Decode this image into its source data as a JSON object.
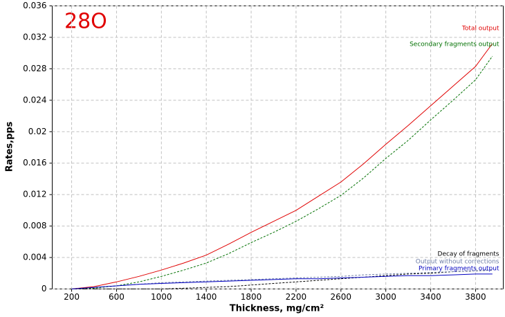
{
  "chart_data": {
    "type": "line",
    "annotation": "28O",
    "x_label": "Thickness, mg/cm²",
    "y_label": "Rates,pps",
    "x": [
      200,
      400,
      600,
      800,
      1000,
      1200,
      1400,
      1600,
      1800,
      2000,
      2200,
      2400,
      2600,
      2800,
      3000,
      3200,
      3400,
      3600,
      3800,
      3950
    ],
    "series": [
      {
        "name": "Total output",
        "color": "#e00000",
        "dashed": false,
        "values": [
          0,
          0.0003,
          0.0009,
          0.0016,
          0.0024,
          0.0033,
          0.0043,
          0.0057,
          0.0072,
          0.0086,
          0.01,
          0.0118,
          0.0136,
          0.0159,
          0.0184,
          0.0208,
          0.0233,
          0.0258,
          0.0283,
          0.0312
        ]
      },
      {
        "name": "Secondary fragments output",
        "color": "#007000",
        "dashed": true,
        "values": [
          0,
          0.0001,
          0.0004,
          0.0009,
          0.0016,
          0.0024,
          0.0033,
          0.0045,
          0.0059,
          0.0072,
          0.0086,
          0.0102,
          0.0119,
          0.0141,
          0.0166,
          0.0189,
          0.0215,
          0.024,
          0.0266,
          0.0296
        ]
      },
      {
        "name": "Decay of fragments",
        "color": "#000000",
        "dashed": true,
        "values": [
          0,
          0,
          0,
          0,
          0,
          0.0001,
          0.0002,
          0.0003,
          0.0005,
          0.0007,
          0.0009,
          0.0011,
          0.0013,
          0.0015,
          0.0017,
          0.0019,
          0.002,
          0.0022,
          0.0023,
          0.0024
        ]
      },
      {
        "name": "Output without corrections",
        "color": "#7080a8",
        "dashed": true,
        "values": [
          0,
          0.0002,
          0.0004,
          0.0006,
          0.0008,
          0.0009,
          0.001,
          0.0011,
          0.0012,
          0.0013,
          0.0014,
          0.0015,
          0.0016,
          0.0018,
          0.0019,
          0.002,
          0.0021,
          0.0022,
          0.0023,
          0.0024
        ]
      },
      {
        "name": "Primary fragments output",
        "color": "#0000c0",
        "dashed": false,
        "values": [
          0,
          0.0002,
          0.0004,
          0.0006,
          0.0007,
          0.0008,
          0.0009,
          0.001,
          0.0011,
          0.0012,
          0.0013,
          0.0013,
          0.0014,
          0.0015,
          0.0016,
          0.0017,
          0.0017,
          0.0018,
          0.0019,
          0.0019
        ]
      }
    ],
    "xlim": [
      27,
      4047
    ],
    "ylim": [
      0,
      0.036
    ],
    "xticks": [
      200,
      600,
      1000,
      1400,
      1800,
      2200,
      2600,
      3000,
      3400,
      3800
    ],
    "yticks": [
      0,
      0.004,
      0.008,
      0.012,
      0.016,
      0.02,
      0.024,
      0.028,
      0.032,
      0.036
    ],
    "grid": true
  }
}
